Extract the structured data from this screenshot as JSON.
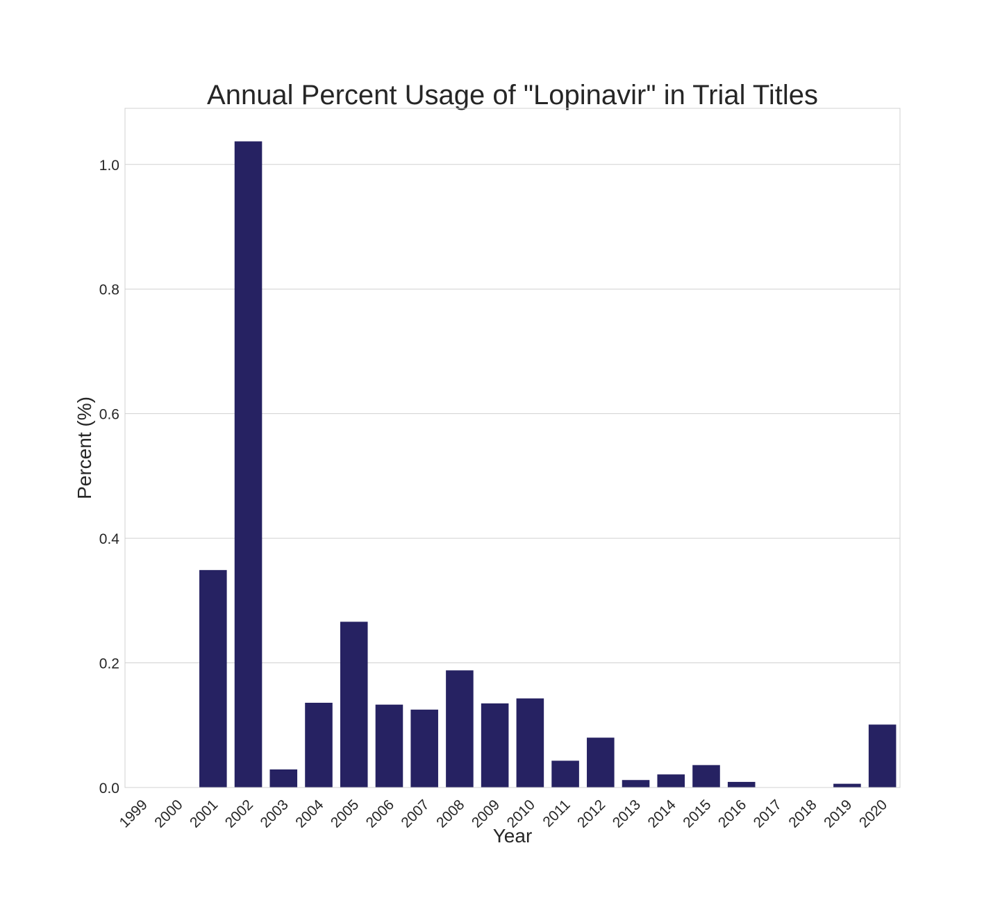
{
  "chart_data": {
    "type": "bar",
    "title": "Annual Percent Usage of \"Lopinavir\" in Trial Titles",
    "xlabel": "Year",
    "ylabel": "Percent (%)",
    "categories": [
      "1999",
      "2000",
      "2001",
      "2002",
      "2003",
      "2004",
      "2005",
      "2006",
      "2007",
      "2008",
      "2009",
      "2010",
      "2011",
      "2012",
      "2013",
      "2014",
      "2015",
      "2016",
      "2017",
      "2018",
      "2019",
      "2020"
    ],
    "values": [
      0.0,
      0.0,
      0.349,
      1.037,
      0.029,
      0.136,
      0.266,
      0.133,
      0.125,
      0.188,
      0.135,
      0.143,
      0.043,
      0.08,
      0.012,
      0.021,
      0.036,
      0.009,
      0.0,
      0.0,
      0.006,
      0.101
    ],
    "yticks": [
      "0.0",
      "0.2",
      "0.4",
      "0.6",
      "0.8",
      "1.0"
    ],
    "ylim": [
      0,
      1.09
    ],
    "grid": "horizontal",
    "bar_color": "#262262",
    "grid_color": "#d0d0d0"
  }
}
